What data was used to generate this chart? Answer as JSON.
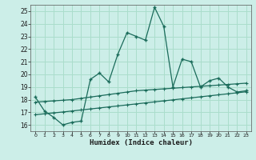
{
  "xlabel": "Humidex (Indice chaleur)",
  "bg_color": "#cceee8",
  "line_color": "#1a6b5a",
  "grid_color": "#aaddcc",
  "xlim": [
    -0.5,
    23.5
  ],
  "ylim": [
    15.5,
    25.5
  ],
  "xticks": [
    0,
    1,
    2,
    3,
    4,
    5,
    6,
    7,
    8,
    9,
    10,
    11,
    12,
    13,
    14,
    15,
    16,
    17,
    18,
    19,
    20,
    21,
    22,
    23
  ],
  "yticks": [
    16,
    17,
    18,
    19,
    20,
    21,
    22,
    23,
    24,
    25
  ],
  "main_x": [
    0,
    1,
    2,
    3,
    4,
    5,
    6,
    7,
    8,
    9,
    10,
    11,
    12,
    13,
    14,
    15,
    16,
    17,
    18,
    19,
    20,
    21,
    22,
    23
  ],
  "main_y": [
    18.2,
    17.1,
    16.6,
    16.0,
    16.2,
    16.3,
    19.6,
    20.1,
    19.4,
    21.6,
    23.3,
    23.0,
    22.7,
    25.3,
    23.8,
    19.0,
    21.2,
    21.0,
    19.0,
    19.5,
    19.7,
    19.0,
    18.6,
    18.7
  ],
  "line2_x": [
    0,
    1,
    2,
    3,
    4,
    5,
    6,
    7,
    8,
    9,
    10,
    11,
    12,
    13,
    14,
    15,
    16,
    17,
    18,
    19,
    20,
    21,
    22,
    23
  ],
  "line2_y": [
    17.8,
    17.85,
    17.9,
    17.95,
    18.0,
    18.1,
    18.2,
    18.3,
    18.4,
    18.5,
    18.6,
    18.7,
    18.75,
    18.8,
    18.85,
    18.9,
    18.95,
    19.0,
    19.05,
    19.1,
    19.15,
    19.2,
    19.25,
    19.3
  ],
  "line3_x": [
    0,
    1,
    2,
    3,
    4,
    5,
    6,
    7,
    8,
    9,
    10,
    11,
    12,
    13,
    14,
    15,
    16,
    17,
    18,
    19,
    20,
    21,
    22,
    23
  ],
  "line3_y": [
    16.8,
    16.88,
    16.95,
    17.02,
    17.1,
    17.18,
    17.26,
    17.34,
    17.42,
    17.5,
    17.58,
    17.66,
    17.74,
    17.82,
    17.9,
    17.98,
    18.06,
    18.14,
    18.22,
    18.3,
    18.38,
    18.46,
    18.54,
    18.62
  ]
}
